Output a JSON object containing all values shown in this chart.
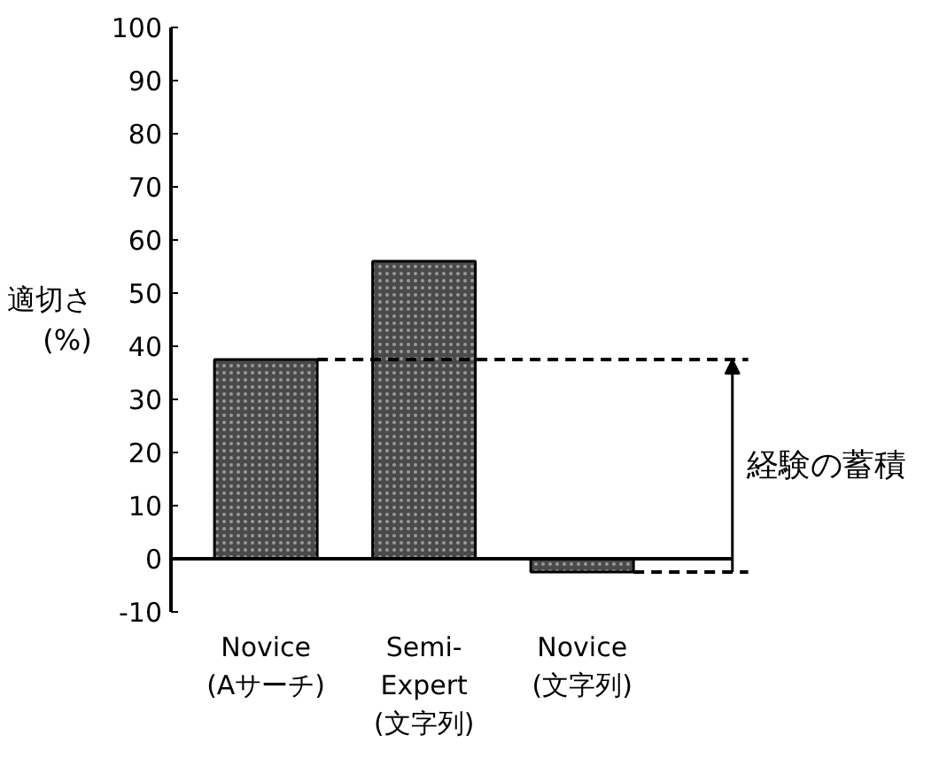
{
  "chart_data": {
    "type": "bar",
    "categories": [
      "Novice\n(Aサーチ)",
      "Semi-\nExpert\n(文字列)",
      "Novice\n(文字列)"
    ],
    "values": [
      37.5,
      56,
      -2.5
    ],
    "color": "#4a4a4a",
    "ylabel": "適切さ\n(%)",
    "ylim": [
      -10,
      100
    ],
    "yticks": [
      -10,
      0,
      10,
      20,
      30,
      40,
      50,
      60,
      70,
      80,
      90,
      100
    ],
    "ref_lines": [
      {
        "axis": "y",
        "value": 37.5,
        "line_style": "dashed"
      },
      {
        "axis": "y",
        "value": -2.5,
        "line_style": "dashed"
      }
    ],
    "annotations": [
      "経験の蓄積"
    ]
  }
}
